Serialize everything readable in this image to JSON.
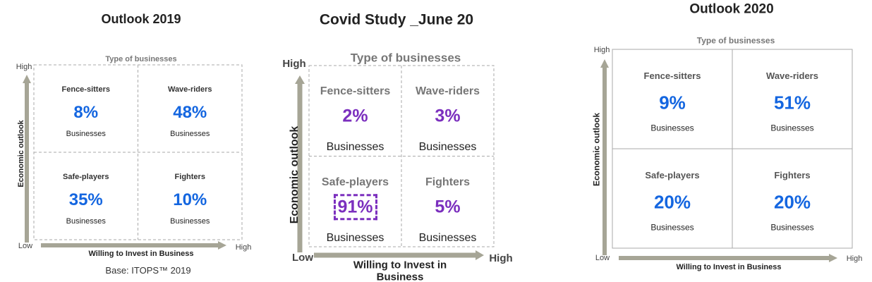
{
  "panels": [
    {
      "title": "Outlook 2019",
      "header": "Type of businesses",
      "y_label": "Economic outlook",
      "y_high": "High",
      "low": "Low",
      "x_high": "High",
      "x_label": "Willing to Invest in Business",
      "value_color": "#1466e0",
      "quadrants": [
        {
          "name": "Fence-sitters",
          "value": "8%",
          "unit": "Businesses"
        },
        {
          "name": "Wave-riders",
          "value": "48%",
          "unit": "Businesses"
        },
        {
          "name": "Safe-players",
          "value": "35%",
          "unit": "Businesses"
        },
        {
          "name": "Fighters",
          "value": "10%",
          "unit": "Businesses"
        }
      ],
      "footnote": "Base: ITOPS™ 2019"
    },
    {
      "title": "Covid Study _June 20",
      "header": "Type of businesses",
      "y_label": "Economic outlook",
      "y_high": "High",
      "low": "Low",
      "x_high": "High",
      "x_label": "Willing to Invest in Business",
      "value_color": "#7b2fbe",
      "quadrants": [
        {
          "name": "Fence-sitters",
          "value": "2%",
          "unit": "Businesses"
        },
        {
          "name": "Wave-riders",
          "value": "3%",
          "unit": "Businesses"
        },
        {
          "name": "Safe-players",
          "value": "91%",
          "unit": "Businesses",
          "highlighted": true
        },
        {
          "name": "Fighters",
          "value": "5%",
          "unit": "Businesses"
        }
      ]
    },
    {
      "title": "Outlook 2020",
      "header": "Type of businesses",
      "y_label": "Economic outlook",
      "y_high": "High",
      "low": "Low",
      "x_high": "High",
      "x_label": "Willing to Invest in Business",
      "value_color": "#1466e0",
      "quadrants": [
        {
          "name": "Fence-sitters",
          "value": "9%",
          "unit": "Businesses"
        },
        {
          "name": "Wave-riders",
          "value": "51%",
          "unit": "Businesses"
        },
        {
          "name": "Safe-players",
          "value": "20%",
          "unit": "Businesses"
        },
        {
          "name": "Fighters",
          "value": "20%",
          "unit": "Businesses"
        }
      ]
    }
  ]
}
